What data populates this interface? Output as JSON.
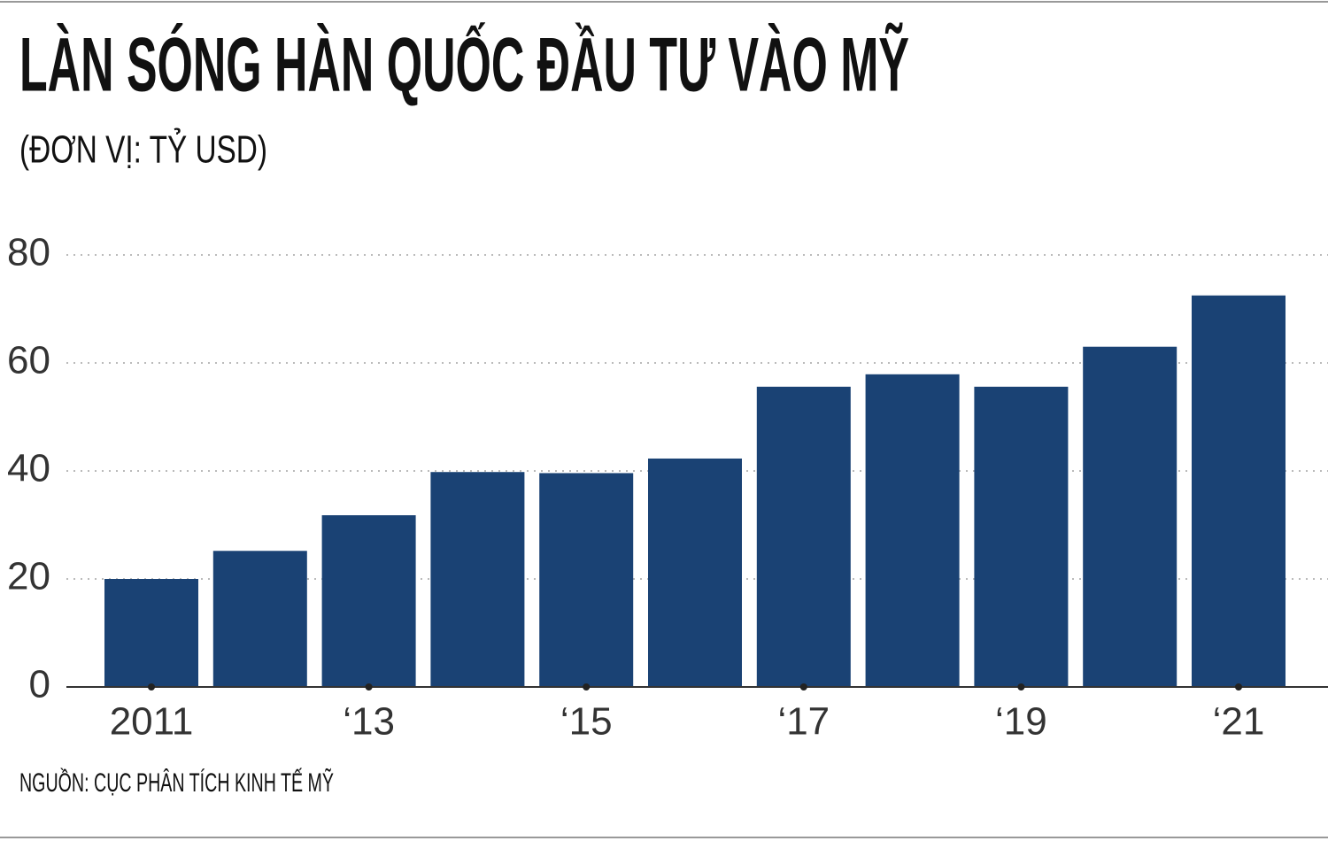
{
  "chart_data": {
    "type": "bar",
    "title": "LÀN SÓNG HÀN QUỐC ĐẦU TƯ VÀO MỸ",
    "subtitle": "(ĐƠN VỊ: TỶ USD)",
    "source": "NGUỒN: CỤC PHÂN TÍCH KINH TẾ MỸ",
    "categories": [
      "2011",
      null,
      "‘13",
      null,
      "‘15",
      null,
      "‘17",
      null,
      "‘19",
      null,
      "‘21"
    ],
    "values": [
      20,
      25.2,
      31.8,
      39.8,
      39.6,
      42.3,
      55.6,
      57.9,
      55.6,
      63,
      72.5
    ],
    "color": "#1a4274",
    "ylim": [
      0,
      80
    ],
    "yticks": [
      0,
      20,
      40,
      60,
      80
    ],
    "grid": true
  }
}
